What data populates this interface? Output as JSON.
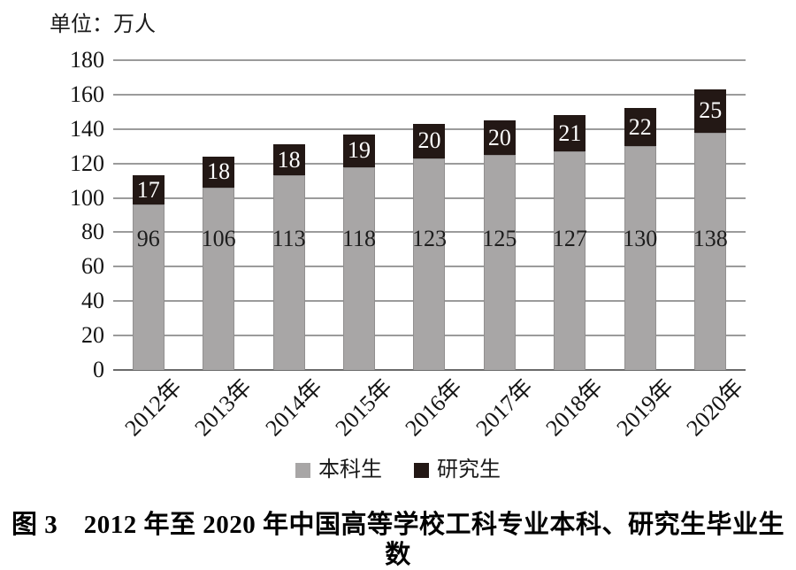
{
  "unit_label": "单位：万人",
  "chart_data": {
    "type": "bar",
    "stacked": true,
    "title": "",
    "categories": [
      "2012年",
      "2013年",
      "2014年",
      "2015年",
      "2016年",
      "2017年",
      "2018年",
      "2019年",
      "2020年"
    ],
    "series": [
      {
        "name": "本科生",
        "values": [
          96,
          106,
          113,
          118,
          123,
          125,
          127,
          130,
          138
        ],
        "color": "#a8a6a6",
        "label_color": "#1c1c1c"
      },
      {
        "name": "研究生",
        "values": [
          17,
          18,
          18,
          19,
          20,
          20,
          21,
          22,
          25
        ],
        "color": "#231815",
        "label_color": "#ffffff"
      }
    ],
    "xlabel": "",
    "ylabel": "单位：万人",
    "ylim": [
      0,
      180
    ],
    "ytick_step": 20,
    "yticks": [
      0,
      20,
      40,
      60,
      80,
      100,
      120,
      140,
      160,
      180
    ],
    "grid": true,
    "legend_position": "bottom",
    "xtick_rotation": -45
  },
  "legend": {
    "items": [
      {
        "label": "本科生",
        "color": "#a8a6a6"
      },
      {
        "label": "研究生",
        "color": "#231815"
      }
    ]
  },
  "caption": "图 3　2012 年至 2020 年中国高等学校工科专业本科、研究生毕业生数",
  "colors": {
    "gridline": "#9b9b9b",
    "axis_line": "#6a6a6a",
    "text": "#141414"
  }
}
